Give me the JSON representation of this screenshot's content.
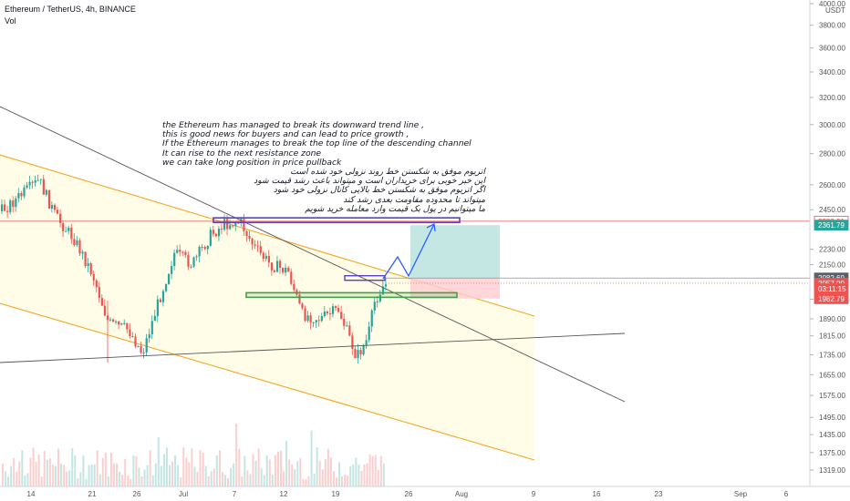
{
  "header": {
    "symbol": "Ethereum / TetherUS, 4h, BINANCE",
    "indicator": "Vol"
  },
  "colors": {
    "up": "#26a69a",
    "down": "#ef5350",
    "channel_fill": "#fffde7",
    "channel_edge": "#f5a623",
    "resistance": "#5b3fc4",
    "support": "#43a047",
    "arrow": "#2962ff",
    "target_zone": "#b2dfdb",
    "stop_zone": "#ffcdd2"
  },
  "annotations": {
    "english": [
      "the Ethereum has managed to break its downward trend line ,",
      "this is good news for buyers and can lead to price growth ,",
      "If the Ethereum manages to break the top line of the descending channel",
      "It can rise to the next resistance zone",
      "we can take long position in price pullback"
    ],
    "persian": [
      "اتریوم موفق به شکستن خط روند نزولی خود شده است",
      "این خبر خوبی برای خریداران است و میتواند باعث رشد قیمت شود",
      "اگر اتریوم موفق به شکستن خط بالایی کانال نزولی خود شود",
      "میتواند تا محدوده مقاومت بعدی رشد کند",
      "ما میتوانیم در پول بک قیمت وارد معامله خرید شویم"
    ]
  },
  "chart_data": {
    "type": "candlestick",
    "y_axis": {
      "unit": "USDT",
      "ticks": [
        4000,
        3800,
        3600,
        3400,
        3200,
        3000,
        2800,
        2600,
        2450,
        2230,
        2150,
        1980,
        1890,
        1815,
        1735,
        1655,
        1575,
        1495,
        1435,
        1375,
        1319
      ],
      "tick_labels": [
        "4000.00",
        "3800.00",
        "3600.00",
        "3400.00",
        "3200.00",
        "3000.00",
        "2800.00",
        "2600.00",
        "2450.00",
        "2230.00",
        "2150.00",
        "1980.00",
        "1890.00",
        "1815.00",
        "1735.00",
        "1655.00",
        "1575.00",
        "1495.00",
        "1435.00",
        "1375.00",
        "1319.00"
      ],
      "scale": "log"
    },
    "x_axis": {
      "tick_labels": [
        "14",
        "21",
        "26",
        "Jul",
        "7",
        "12",
        "19",
        "26",
        "Aug",
        "9",
        "16",
        "23",
        "Sep",
        "6"
      ]
    },
    "price_labels": [
      {
        "text": "2383.91",
        "value": 2383.91,
        "kind": "line-red"
      },
      {
        "text": "2361.79",
        "value": 2361.79,
        "kind": "target"
      },
      {
        "text": "2082.69",
        "value": 2082.69,
        "kind": "line-dark"
      },
      {
        "text": "2057.00",
        "value": 2057.0,
        "kind": "last-price"
      },
      {
        "text": "03:11:15",
        "value": 2030.0,
        "kind": "countdown"
      },
      {
        "text": "1982.79",
        "value": 1982.79,
        "kind": "stop"
      }
    ],
    "trade": {
      "entry": 2082.69,
      "target": 2361.79,
      "stop": 1982.79
    },
    "resistance_zone": 2390,
    "support_zone": 2000,
    "grid": false
  }
}
